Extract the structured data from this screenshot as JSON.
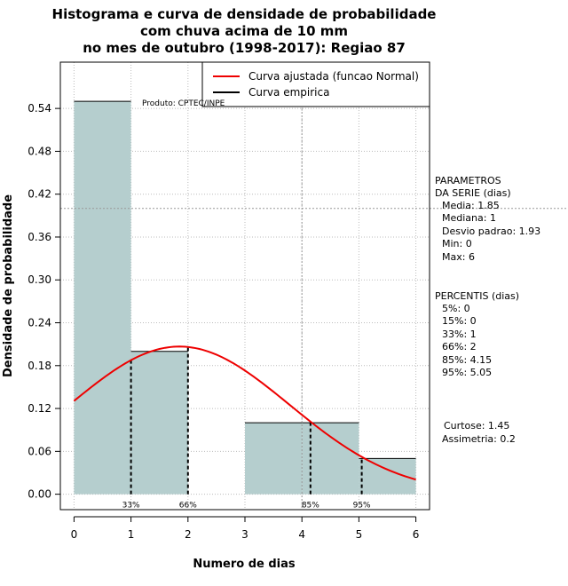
{
  "chart_data": {
    "type": "bar",
    "title_lines": [
      "Histograma e curva de densidade de probabilidade",
      "com chuva acima de 10 mm",
      "no mes de outubro (1998-2017): Regiao 87"
    ],
    "xlabel": "Numero de dias",
    "ylabel": "Densidade de probabilidade",
    "xlim": [
      -0.24,
      6.24
    ],
    "ylim": [
      -0.0216,
      0.6048
    ],
    "x_ticks": [
      0,
      1,
      2,
      3,
      4,
      5,
      6
    ],
    "y_ticks": [
      0.0,
      0.06,
      0.12,
      0.18,
      0.24,
      0.3,
      0.36,
      0.42,
      0.48,
      0.54
    ],
    "y_tick_labels": [
      "0.00",
      "0.06",
      "0.12",
      "0.18",
      "0.24",
      "0.30",
      "0.36",
      "0.42",
      "0.48",
      "0.54"
    ],
    "bars": [
      {
        "x0": 0,
        "x1": 1,
        "value": 0.55
      },
      {
        "x0": 1,
        "x1": 2,
        "value": 0.2
      },
      {
        "x0": 2,
        "x1": 3,
        "value": 0.0
      },
      {
        "x0": 3,
        "x1": 4,
        "value": 0.1
      },
      {
        "x0": 4,
        "x1": 5,
        "value": 0.1
      },
      {
        "x0": 5,
        "x1": 6,
        "value": 0.05
      }
    ],
    "bar_color": "#b5cece",
    "fitted_curve": {
      "name": "Curva ajustada (funcao Normal)",
      "mean": 1.85,
      "sd": 1.93,
      "color": "#ee0000"
    },
    "empirical_curve": {
      "name": "Curva empirica",
      "color": "#000000"
    },
    "percentile_markers": [
      {
        "label": "33%",
        "x": 1
      },
      {
        "label": "66%",
        "x": 2
      },
      {
        "label": "85%",
        "x": 4.15
      },
      {
        "label": "95%",
        "x": 5.05
      }
    ],
    "reference_lines": {
      "x": 4,
      "y": 0.4
    },
    "grid": true,
    "legend_position": "top-right"
  },
  "product_label": "Produto: CPTEC/INPE",
  "parametros": {
    "heading_lines": [
      "PARAMETROS",
      "DA SERIE (dias)"
    ],
    "items": [
      "Media: 1.85",
      "Mediana: 1",
      "Desvio padrao: 1.93",
      "Min: 0",
      "Max: 6"
    ]
  },
  "percentis": {
    "heading": "PERCENTIS (dias)",
    "items": [
      "5%: 0",
      "15%: 0",
      "33%: 1",
      "66%: 2",
      "85%: 4.15",
      "95%: 5.05"
    ]
  },
  "shape_stats": [
    "Curtose: 1.45",
    "Assimetria: 0.2"
  ]
}
